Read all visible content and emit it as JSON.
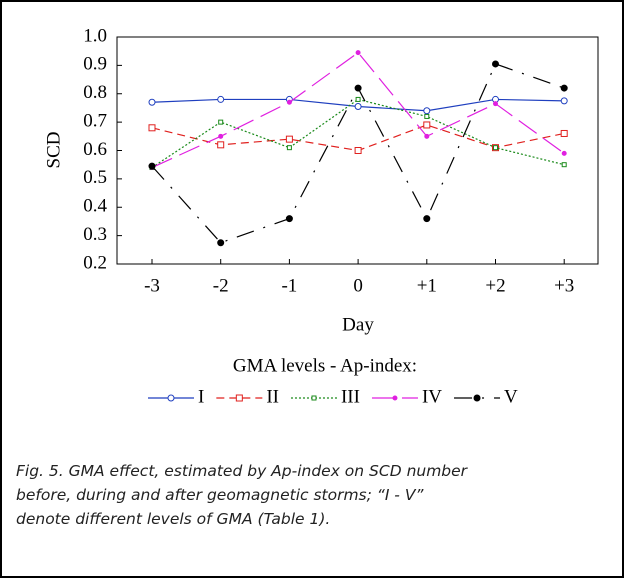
{
  "chart_data": {
    "type": "line",
    "ylabel": "SCD",
    "xlabel": "Day",
    "legend_title": "GMA levels - Ap-index:",
    "categories": [
      "-3",
      "-2",
      "-1",
      "0",
      "+1",
      "+2",
      "+3"
    ],
    "ylim": [
      0.2,
      1.0
    ],
    "yticks": [
      0.2,
      0.3,
      0.4,
      0.5,
      0.6,
      0.7,
      0.8,
      0.9,
      {
        "value": 1,
        "label": "1.0"
      }
    ],
    "series": [
      {
        "name": "I",
        "color": "#1f3fbf",
        "values": [
          0.77,
          0.78,
          0.78,
          0.755,
          0.74,
          0.78,
          0.775
        ]
      },
      {
        "name": "II",
        "color": "#e0201e",
        "values": [
          0.68,
          0.62,
          0.64,
          0.6,
          0.69,
          0.61,
          0.66
        ]
      },
      {
        "name": "III",
        "color": "#1a8a1a",
        "values": [
          0.54,
          0.7,
          0.61,
          0.78,
          0.72,
          0.61,
          0.55
        ]
      },
      {
        "name": "IV",
        "color": "#e020e0",
        "values": [
          0.54,
          0.65,
          0.77,
          0.945,
          0.65,
          0.765,
          0.59
        ]
      },
      {
        "name": "V",
        "color": "#000000",
        "values": [
          0.545,
          0.275,
          0.36,
          0.82,
          0.36,
          0.905,
          0.82
        ]
      }
    ],
    "caption": [
      "Fig. 5. GMA effect, estimated by Ap-index on SCD number",
      "before, during and after geomagnetic storms; “I - V”",
      "denote different levels of GMA (Table 1)."
    ]
  }
}
